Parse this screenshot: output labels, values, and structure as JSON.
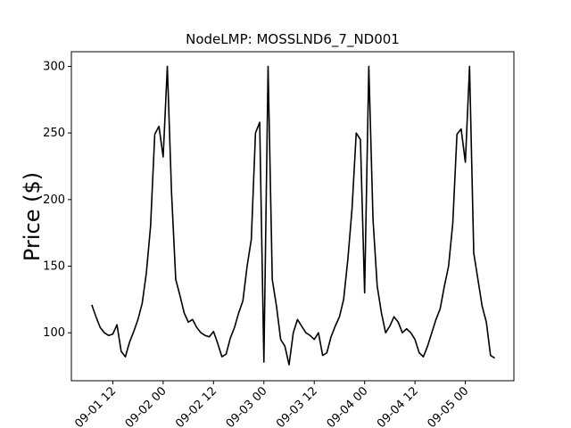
{
  "chart_data": {
    "type": "line",
    "title": "NodeLMP: MOSSLND6_7_ND001",
    "ylabel": "Price ($)",
    "color": "#000000",
    "x": [
      "09-01 07",
      "09-01 08",
      "09-01 09",
      "09-01 10",
      "09-01 11",
      "09-01 12",
      "09-01 13",
      "09-01 14",
      "09-01 15",
      "09-01 16",
      "09-01 17",
      "09-01 18",
      "09-01 19",
      "09-01 20",
      "09-01 21",
      "09-01 22",
      "09-01 23",
      "09-02 00",
      "09-02 01",
      "09-02 02",
      "09-02 03",
      "09-02 04",
      "09-02 05",
      "09-02 06",
      "09-02 07",
      "09-02 08",
      "09-02 09",
      "09-02 10",
      "09-02 11",
      "09-02 12",
      "09-02 13",
      "09-02 14",
      "09-02 15",
      "09-02 16",
      "09-02 17",
      "09-02 18",
      "09-02 19",
      "09-02 20",
      "09-02 21",
      "09-02 22",
      "09-02 23",
      "09-03 00",
      "09-03 01",
      "09-03 02",
      "09-03 03",
      "09-03 04",
      "09-03 05",
      "09-03 06",
      "09-03 07",
      "09-03 08",
      "09-03 09",
      "09-03 10",
      "09-03 11",
      "09-03 12",
      "09-03 13",
      "09-03 14",
      "09-03 15",
      "09-03 16",
      "09-03 17",
      "09-03 18",
      "09-03 19",
      "09-03 20",
      "09-03 21",
      "09-03 22",
      "09-03 23",
      "09-04 00",
      "09-04 01",
      "09-04 02",
      "09-04 03",
      "09-04 04",
      "09-04 05",
      "09-04 06",
      "09-04 07",
      "09-04 08",
      "09-04 09",
      "09-04 10",
      "09-04 11",
      "09-04 12",
      "09-04 13",
      "09-04 14",
      "09-04 15",
      "09-04 16",
      "09-04 17",
      "09-04 18",
      "09-04 19",
      "09-04 20",
      "09-04 21",
      "09-04 22",
      "09-04 23",
      "09-05 00",
      "09-05 01",
      "09-05 02",
      "09-05 03",
      "09-05 04",
      "09-05 05",
      "09-05 06",
      "09-05 07"
    ],
    "values": [
      121,
      112,
      104,
      100,
      98,
      99,
      106,
      86,
      82,
      93,
      101,
      110,
      122,
      145,
      180,
      249,
      255,
      232,
      300,
      205,
      140,
      128,
      115,
      108,
      110,
      104,
      100,
      98,
      97,
      101,
      92,
      82,
      84,
      96,
      104,
      115,
      124,
      150,
      170,
      250,
      258,
      78,
      300,
      140,
      120,
      95,
      90,
      76,
      100,
      110,
      105,
      100,
      98,
      95,
      100,
      83,
      85,
      97,
      105,
      112,
      125,
      155,
      193,
      250,
      245,
      130,
      300,
      185,
      135,
      115,
      100,
      105,
      112,
      108,
      100,
      103,
      100,
      95,
      85,
      82,
      90,
      100,
      110,
      118,
      135,
      150,
      182,
      249,
      253,
      228,
      300,
      160,
      140,
      120,
      108,
      83,
      81
    ],
    "xlim": [
      "09-01 02:08",
      "09-05 11:34"
    ],
    "xticks": [
      "09-01 12",
      "09-02 00",
      "09-02 12",
      "09-03 00",
      "09-03 12",
      "09-04 00",
      "09-04 12",
      "09-05 00"
    ],
    "ylim": [
      64,
      311
    ],
    "yticks": [
      100,
      150,
      200,
      250,
      300
    ]
  }
}
